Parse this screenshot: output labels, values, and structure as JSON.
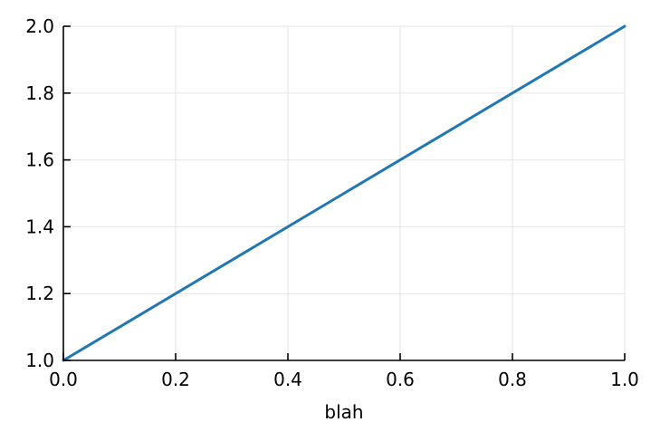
{
  "chart_data": {
    "type": "line",
    "title": "",
    "xlabel": "blah",
    "ylabel": "",
    "xlim": [
      0.0,
      1.0
    ],
    "ylim": [
      1.0,
      2.0
    ],
    "xticks": [
      "0.0",
      "0.2",
      "0.4",
      "0.6",
      "0.8",
      "1.0"
    ],
    "yticks": [
      "1.0",
      "1.2",
      "1.4",
      "1.6",
      "1.8",
      "2.0"
    ],
    "grid": true,
    "legend": "none",
    "series": [
      {
        "x": [
          0.0,
          1.0
        ],
        "y": [
          1.0,
          2.0
        ],
        "color": "#1f77b4"
      }
    ]
  }
}
